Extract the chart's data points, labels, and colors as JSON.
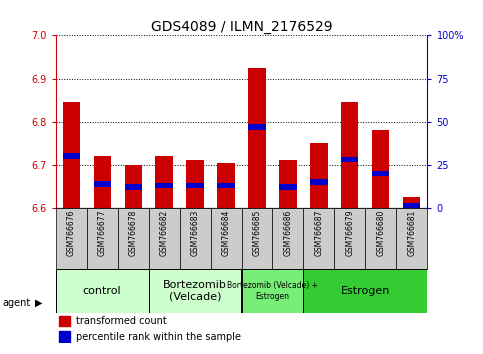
{
  "title": "GDS4089 / ILMN_2176529",
  "samples": [
    "GSM766676",
    "GSM766677",
    "GSM766678",
    "GSM766682",
    "GSM766683",
    "GSM766684",
    "GSM766685",
    "GSM766686",
    "GSM766687",
    "GSM766679",
    "GSM766680",
    "GSM766681"
  ],
  "transformed_count": [
    6.845,
    6.72,
    6.7,
    6.72,
    6.71,
    6.705,
    6.925,
    6.71,
    6.75,
    6.845,
    6.78,
    6.625
  ],
  "percentile_rank": [
    30,
    14,
    12,
    13,
    13,
    13,
    47,
    12,
    15,
    28,
    20,
    1
  ],
  "ylim_left": [
    6.6,
    7.0
  ],
  "ylim_right": [
    0,
    100
  ],
  "yticks_left": [
    6.6,
    6.7,
    6.8,
    6.9,
    7.0
  ],
  "yticks_right": [
    0,
    25,
    50,
    75,
    100
  ],
  "yticklabels_right": [
    "0",
    "25",
    "50",
    "75",
    "100%"
  ],
  "bar_width": 0.55,
  "red_color": "#cc0000",
  "blue_color": "#0000cc",
  "groups_info": [
    {
      "label": "control",
      "indices": [
        0,
        1,
        2
      ],
      "color": "#ccffcc",
      "fontsize": 8
    },
    {
      "label": "Bortezomib\n(Velcade)",
      "indices": [
        3,
        4,
        5
      ],
      "color": "#ccffcc",
      "fontsize": 8
    },
    {
      "label": "Bortezomib (Velcade) +\nEstrogen",
      "indices": [
        6,
        7
      ],
      "color": "#77ee77",
      "fontsize": 5.5
    },
    {
      "label": "Estrogen",
      "indices": [
        8,
        9,
        10,
        11
      ],
      "color": "#33cc33",
      "fontsize": 8
    }
  ],
  "agent_label": "agent",
  "legend_items": [
    {
      "color": "#cc0000",
      "label": "transformed count"
    },
    {
      "color": "#0000cc",
      "label": "percentile rank within the sample"
    }
  ],
  "left_tick_color": "#cc0000",
  "right_tick_color": "#0000cc",
  "background_color": "#ffffff",
  "tick_label_fontsize": 7,
  "title_fontsize": 10,
  "sample_label_fontsize": 5.5,
  "cell_color": "#cccccc"
}
